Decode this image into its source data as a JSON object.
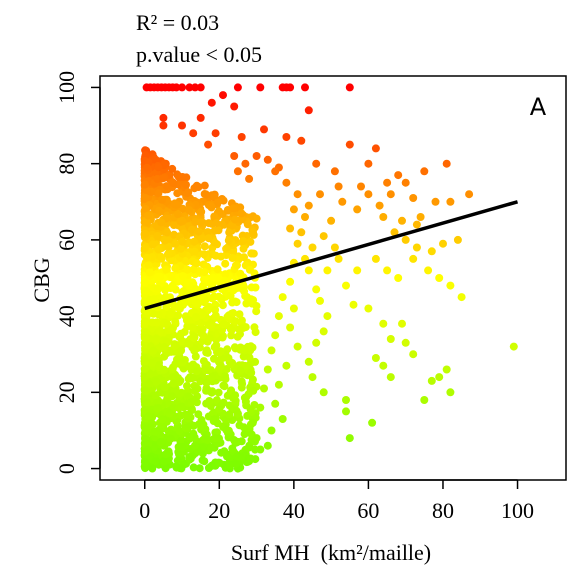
{
  "chart_data": {
    "type": "scatter",
    "title": "",
    "panel_label": "A",
    "stats": [
      "R² = 0.03",
      "p.value < 0.05"
    ],
    "xlabel": "Surf MH  (km²/maille)",
    "ylabel": "CBG",
    "xlim": [
      -12,
      113
    ],
    "ylim": [
      -3,
      103
    ],
    "xticks": [
      0,
      20,
      40,
      60,
      80,
      100
    ],
    "yticks": [
      0,
      20,
      40,
      60,
      80,
      100
    ],
    "grid": false,
    "legend": "none",
    "color_scale": {
      "low": "#7cfc00",
      "mid": "#ffff00",
      "high": "#ff0000",
      "domain": [
        0,
        100
      ],
      "mapped_to": "y"
    },
    "fit_line": {
      "x": [
        0,
        100
      ],
      "y": [
        42,
        70
      ],
      "color": "#000000"
    },
    "series": [
      {
        "points": [
          [
            0.5,
            100
          ],
          [
            1.5,
            100
          ],
          [
            2.5,
            100
          ],
          [
            3.5,
            100
          ],
          [
            4.5,
            100
          ],
          [
            5.5,
            100
          ],
          [
            6.5,
            100
          ],
          [
            7.5,
            100
          ],
          [
            8.5,
            100
          ],
          [
            10,
            100
          ],
          [
            12,
            100
          ],
          [
            13.5,
            100
          ],
          [
            15,
            100
          ],
          [
            25,
            100
          ],
          [
            31,
            100
          ],
          [
            37,
            100
          ],
          [
            38,
            100
          ],
          [
            39,
            100
          ],
          [
            43,
            100
          ],
          [
            55,
            100
          ],
          [
            5,
            92
          ],
          [
            5,
            90
          ],
          [
            10,
            90
          ],
          [
            13,
            88
          ],
          [
            15,
            92
          ],
          [
            17,
            85
          ],
          [
            18,
            96
          ],
          [
            19,
            88
          ],
          [
            21,
            98
          ],
          [
            24,
            95
          ],
          [
            26,
            87
          ],
          [
            30,
            82
          ],
          [
            32,
            89
          ],
          [
            36,
            79
          ],
          [
            38,
            87
          ],
          [
            42,
            86
          ],
          [
            44,
            94
          ],
          [
            46,
            80
          ],
          [
            51,
            78
          ],
          [
            55,
            85
          ],
          [
            60,
            80
          ],
          [
            62,
            84
          ],
          [
            65,
            75
          ],
          [
            70,
            75
          ],
          [
            75,
            78
          ],
          [
            81,
            80
          ],
          [
            87,
            72
          ],
          [
            82,
            70
          ],
          [
            78,
            70
          ],
          [
            72,
            71
          ],
          [
            68,
            77
          ],
          [
            58,
            74
          ],
          [
            66,
            72
          ],
          [
            52,
            74
          ],
          [
            53,
            70
          ],
          [
            57,
            68
          ],
          [
            60,
            72
          ],
          [
            63,
            69
          ],
          [
            64,
            66
          ],
          [
            67,
            62
          ],
          [
            69,
            65
          ],
          [
            70,
            60
          ],
          [
            73,
            64
          ],
          [
            74,
            66
          ],
          [
            77,
            57
          ],
          [
            80,
            59
          ],
          [
            84,
            60
          ],
          [
            73,
            58
          ],
          [
            76,
            52
          ],
          [
            79,
            50
          ],
          [
            82,
            48
          ],
          [
            85,
            45
          ],
          [
            72,
            55
          ],
          [
            68,
            50
          ],
          [
            62,
            55
          ],
          [
            65,
            52
          ],
          [
            57,
            52
          ],
          [
            54,
            48
          ],
          [
            56,
            43
          ],
          [
            60,
            42
          ],
          [
            64,
            38
          ],
          [
            66,
            34
          ],
          [
            69,
            38
          ],
          [
            72,
            30
          ],
          [
            70,
            33
          ],
          [
            62,
            29
          ],
          [
            64,
            27
          ],
          [
            66,
            24
          ],
          [
            75,
            18
          ],
          [
            77,
            23
          ],
          [
            79,
            24
          ],
          [
            81,
            26
          ],
          [
            82,
            20
          ],
          [
            99,
            32
          ],
          [
            61,
            12
          ],
          [
            54,
            18
          ],
          [
            55,
            8
          ],
          [
            54,
            15
          ],
          [
            48,
            20
          ],
          [
            45,
            24
          ],
          [
            44,
            28
          ],
          [
            46,
            33
          ],
          [
            48,
            36
          ],
          [
            49,
            40
          ],
          [
            47,
            44
          ],
          [
            46,
            47
          ],
          [
            44,
            52
          ],
          [
            43,
            55
          ],
          [
            45,
            58
          ],
          [
            42,
            62
          ],
          [
            43,
            66
          ],
          [
            44,
            69
          ],
          [
            47,
            72
          ],
          [
            50,
            65
          ],
          [
            48,
            61
          ],
          [
            51,
            58
          ],
          [
            52,
            55
          ],
          [
            49,
            52
          ],
          [
            40,
            42
          ],
          [
            39,
            37
          ],
          [
            41,
            32
          ],
          [
            38,
            27
          ],
          [
            36,
            22
          ],
          [
            35,
            17
          ],
          [
            37,
            13
          ],
          [
            34,
            10
          ],
          [
            33,
            6
          ],
          [
            31,
            5
          ],
          [
            30,
            8
          ],
          [
            29,
            12
          ],
          [
            31,
            16
          ],
          [
            32,
            21
          ],
          [
            33,
            26
          ],
          [
            34,
            31
          ],
          [
            35,
            35
          ],
          [
            36,
            40
          ],
          [
            37,
            45
          ],
          [
            39,
            49
          ],
          [
            40,
            54
          ],
          [
            41,
            59
          ],
          [
            39,
            63
          ],
          [
            40,
            68
          ],
          [
            41,
            72
          ],
          [
            38,
            75
          ],
          [
            35,
            78
          ],
          [
            33,
            81
          ],
          [
            27,
            80
          ],
          [
            25,
            78
          ],
          [
            28,
            76
          ],
          [
            24,
            82
          ]
        ],
        "density_band": {
          "x_max": 30,
          "y_max": 84,
          "count": 1900
        }
      }
    ]
  }
}
